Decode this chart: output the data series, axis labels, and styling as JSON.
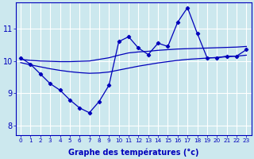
{
  "x_ticks": [
    0,
    1,
    2,
    3,
    4,
    5,
    6,
    7,
    8,
    9,
    10,
    11,
    12,
    13,
    14,
    15,
    16,
    17,
    18,
    19,
    20,
    21,
    22,
    23
  ],
  "ylim": [
    7.7,
    11.8
  ],
  "xlim": [
    -0.5,
    23.5
  ],
  "yticks": [
    8,
    9,
    10,
    11
  ],
  "background_color": "#cce8ee",
  "line_color": "#0000bb",
  "grid_color": "#ffffff",
  "xlabel": "Graphe des températures (°c)",
  "jagged": [
    10.1,
    9.9,
    9.6,
    9.3,
    9.1,
    8.8,
    8.55,
    8.4,
    8.75,
    9.25,
    10.6,
    10.75,
    10.4,
    10.2,
    10.55,
    10.45,
    11.2,
    11.65,
    10.85,
    10.1,
    10.1,
    10.15,
    10.15,
    10.35
  ],
  "upper_trend": [
    10.05,
    10.02,
    10.0,
    9.99,
    9.98,
    9.98,
    9.99,
    10.0,
    10.05,
    10.1,
    10.18,
    10.25,
    10.28,
    10.3,
    10.33,
    10.35,
    10.37,
    10.38,
    10.39,
    10.4,
    10.41,
    10.42,
    10.43,
    10.45
  ],
  "lower_trend": [
    9.95,
    9.88,
    9.82,
    9.76,
    9.71,
    9.67,
    9.64,
    9.62,
    9.63,
    9.66,
    9.72,
    9.78,
    9.84,
    9.89,
    9.94,
    9.98,
    10.02,
    10.05,
    10.07,
    10.09,
    10.11,
    10.13,
    10.15,
    10.18
  ]
}
